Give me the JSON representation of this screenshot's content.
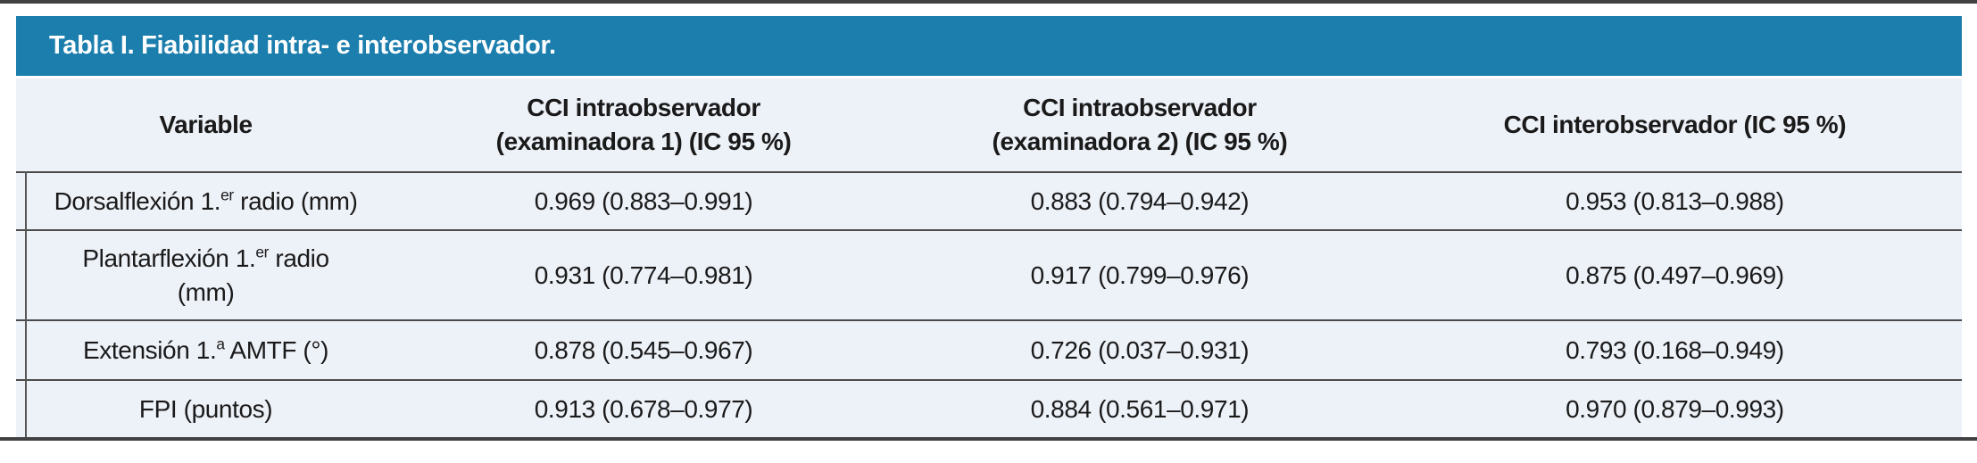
{
  "title": "Tabla I. Fiabilidad intra- e interobservador.",
  "columns": {
    "variable": "Variable",
    "cci_intra1_line1": "CCI intraobservador",
    "cci_intra1_line2": "(examinadora 1) (IC 95 %)",
    "cci_intra2_line1": "CCI intraobservador",
    "cci_intra2_line2": "(examinadora 2) (IC 95 %)",
    "cci_inter": "CCI interobservador (IC 95 %)"
  },
  "rows": [
    {
      "name_pre": "Dorsalflexión 1.",
      "name_sup": "er",
      "name_post": " radio (mm)",
      "name_line2": "",
      "cci_intra1": "0.969 (0.883–0.991)",
      "cci_intra2": "0.883 (0.794–0.942)",
      "cci_inter": "0.953 (0.813–0.988)"
    },
    {
      "name_pre": "Plantarflexión 1.",
      "name_sup": "er",
      "name_post": " radio",
      "name_line2": "(mm)",
      "cci_intra1": "0.931 (0.774–0.981)",
      "cci_intra2": "0.917 (0.799–0.976)",
      "cci_inter": "0.875 (0.497–0.969)"
    },
    {
      "name_pre": "Extensión 1.",
      "name_sup": "a",
      "name_post": " AMTF (°)",
      "name_line2": "",
      "cci_intra1": "0.878 (0.545–0.967)",
      "cci_intra2": "0.726 (0.037–0.931)",
      "cci_inter": "0.793 (0.168–0.949)"
    },
    {
      "name_pre": "FPI (puntos)",
      "name_sup": "",
      "name_post": "",
      "name_line2": "",
      "cci_intra1": "0.913 (0.678–0.977)",
      "cci_intra2": "0.884 (0.561–0.971)",
      "cci_inter": "0.970 (0.879–0.993)"
    }
  ],
  "colors": {
    "header_bar": "#1b7ead",
    "table_background": "#edf1f8",
    "rule": "#414141",
    "header_text": "#ffffff",
    "body_text": "#1a1a1a"
  }
}
